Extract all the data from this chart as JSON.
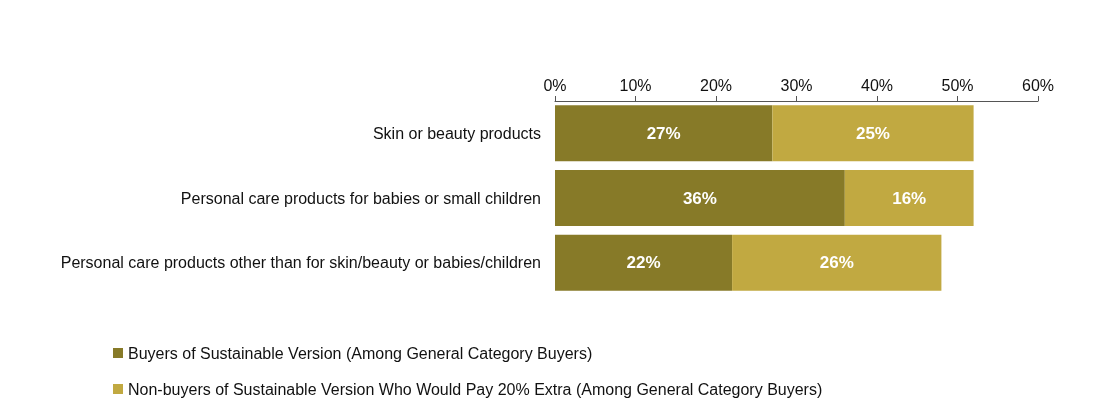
{
  "chart_data": {
    "type": "bar",
    "orientation": "horizontal",
    "stacked": true,
    "categories": [
      "Skin or beauty products",
      "Personal care products for babies or small children",
      "Personal care products other than for skin/beauty or babies/children"
    ],
    "series": [
      {
        "name": "Buyers of Sustainable Version (Among General Category Buyers)",
        "color": "#877a28",
        "values": [
          27,
          36,
          22
        ],
        "value_labels": [
          "27%",
          "36%",
          "22%"
        ]
      },
      {
        "name": "Non-buyers of Sustainable Version Who Would Pay 20% Extra (Among General Category Buyers)",
        "color": "#c1a941",
        "values": [
          25,
          16,
          26
        ],
        "value_labels": [
          "25%",
          "16%",
          "26%"
        ]
      }
    ],
    "xlim": [
      0,
      60
    ],
    "xticks": [
      {
        "value": 0,
        "label": "0%"
      },
      {
        "value": 10,
        "label": "10%"
      },
      {
        "value": 20,
        "label": "20%"
      },
      {
        "value": 30,
        "label": "30%"
      },
      {
        "value": 40,
        "label": "40%"
      },
      {
        "value": 50,
        "label": "50%"
      },
      {
        "value": 60,
        "label": "60%"
      }
    ],
    "grid": false,
    "legend": "bottom left"
  }
}
